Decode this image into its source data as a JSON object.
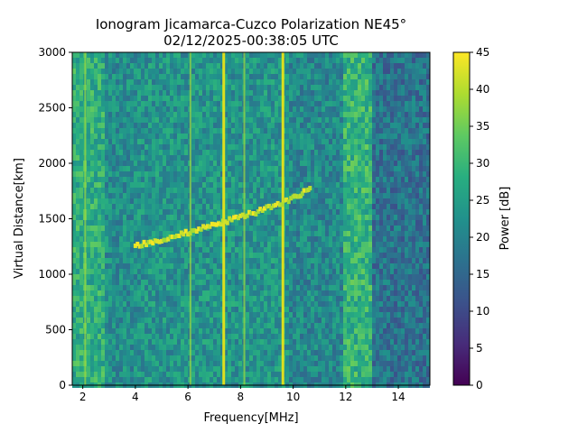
{
  "chart_data": {
    "type": "heatmap",
    "title_line1": "Ionogram Jicamarca-Cuzco Polarization NE45°",
    "title_line2": "02/12/2025-00:38:05 UTC",
    "xlabel": "Frequency[MHz]",
    "ylabel": "Virtual Distance[km]",
    "xlim": [
      1.6,
      15.2
    ],
    "ylim": [
      0,
      3000
    ],
    "xticks": [
      2,
      4,
      6,
      8,
      10,
      12,
      14
    ],
    "yticks": [
      0,
      500,
      1000,
      1500,
      2000,
      2500,
      3000
    ],
    "colorbar": {
      "label": "Power [dB]",
      "range": [
        0,
        45
      ],
      "ticks": [
        0,
        5,
        10,
        15,
        20,
        25,
        30,
        35,
        40,
        45
      ],
      "colormap": "viridis"
    },
    "vertical_lines_mhz": [
      7.35,
      9.6,
      6.1,
      2.1,
      8.15
    ],
    "echo_trace": [
      {
        "freq": 4.0,
        "dist": 1250
      },
      {
        "freq": 5.0,
        "dist": 1310
      },
      {
        "freq": 6.0,
        "dist": 1370
      },
      {
        "freq": 7.0,
        "dist": 1440
      },
      {
        "freq": 8.0,
        "dist": 1510
      },
      {
        "freq": 9.0,
        "dist": 1590
      },
      {
        "freq": 10.0,
        "dist": 1680
      },
      {
        "freq": 10.7,
        "dist": 1770
      }
    ]
  }
}
